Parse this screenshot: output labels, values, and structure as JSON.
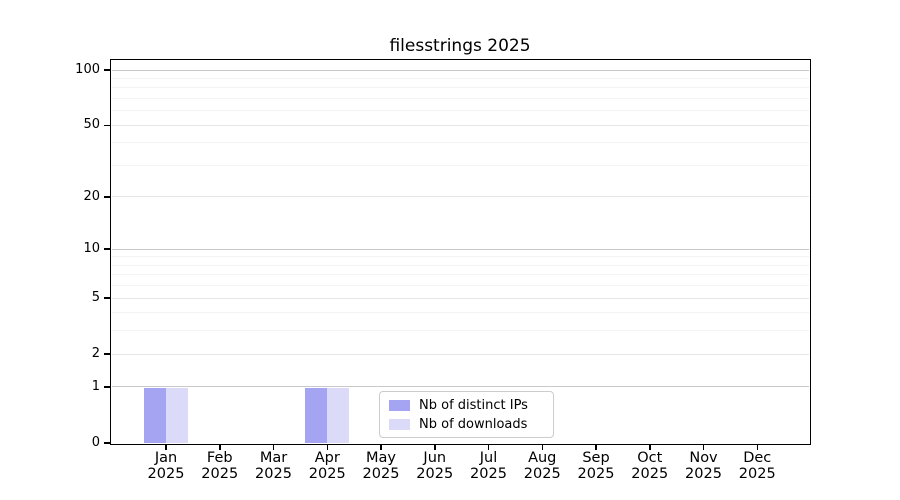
{
  "chart_data": {
    "type": "bar",
    "title": "filesstrings 2025",
    "categories": [
      "Jan",
      "Feb",
      "Mar",
      "Apr",
      "May",
      "Jun",
      "Jul",
      "Aug",
      "Sep",
      "Oct",
      "Nov",
      "Dec"
    ],
    "x_year_label": "2025",
    "series": [
      {
        "name": "Nb of distinct IPs",
        "color": "#a4a4f2",
        "values": [
          1,
          0,
          0,
          1,
          0,
          0,
          0,
          0,
          0,
          0,
          0,
          0
        ]
      },
      {
        "name": "Nb of downloads",
        "color": "#dbdbf9",
        "values": [
          1,
          0,
          0,
          1,
          0,
          0,
          0,
          0,
          0,
          0,
          0,
          0
        ]
      }
    ],
    "y_scale": "log1p",
    "ylim": [
      0,
      112
    ],
    "y_ticks": [
      0,
      1,
      2,
      5,
      10,
      20,
      50,
      100
    ],
    "y_minor_ticks": [
      3,
      4,
      6,
      7,
      8,
      9,
      30,
      40,
      60,
      70,
      80,
      90
    ],
    "y_emphasized_ticks": [
      1,
      10,
      100
    ],
    "grid": true,
    "legend_position": "lower center",
    "colors": {
      "grid_minor": "#f3f3f3",
      "grid_major": "#e6e6e6",
      "grid_emphasis": "#c9c9c9",
      "axis": "#000000",
      "text": "#000000",
      "background": "#ffffff"
    }
  }
}
